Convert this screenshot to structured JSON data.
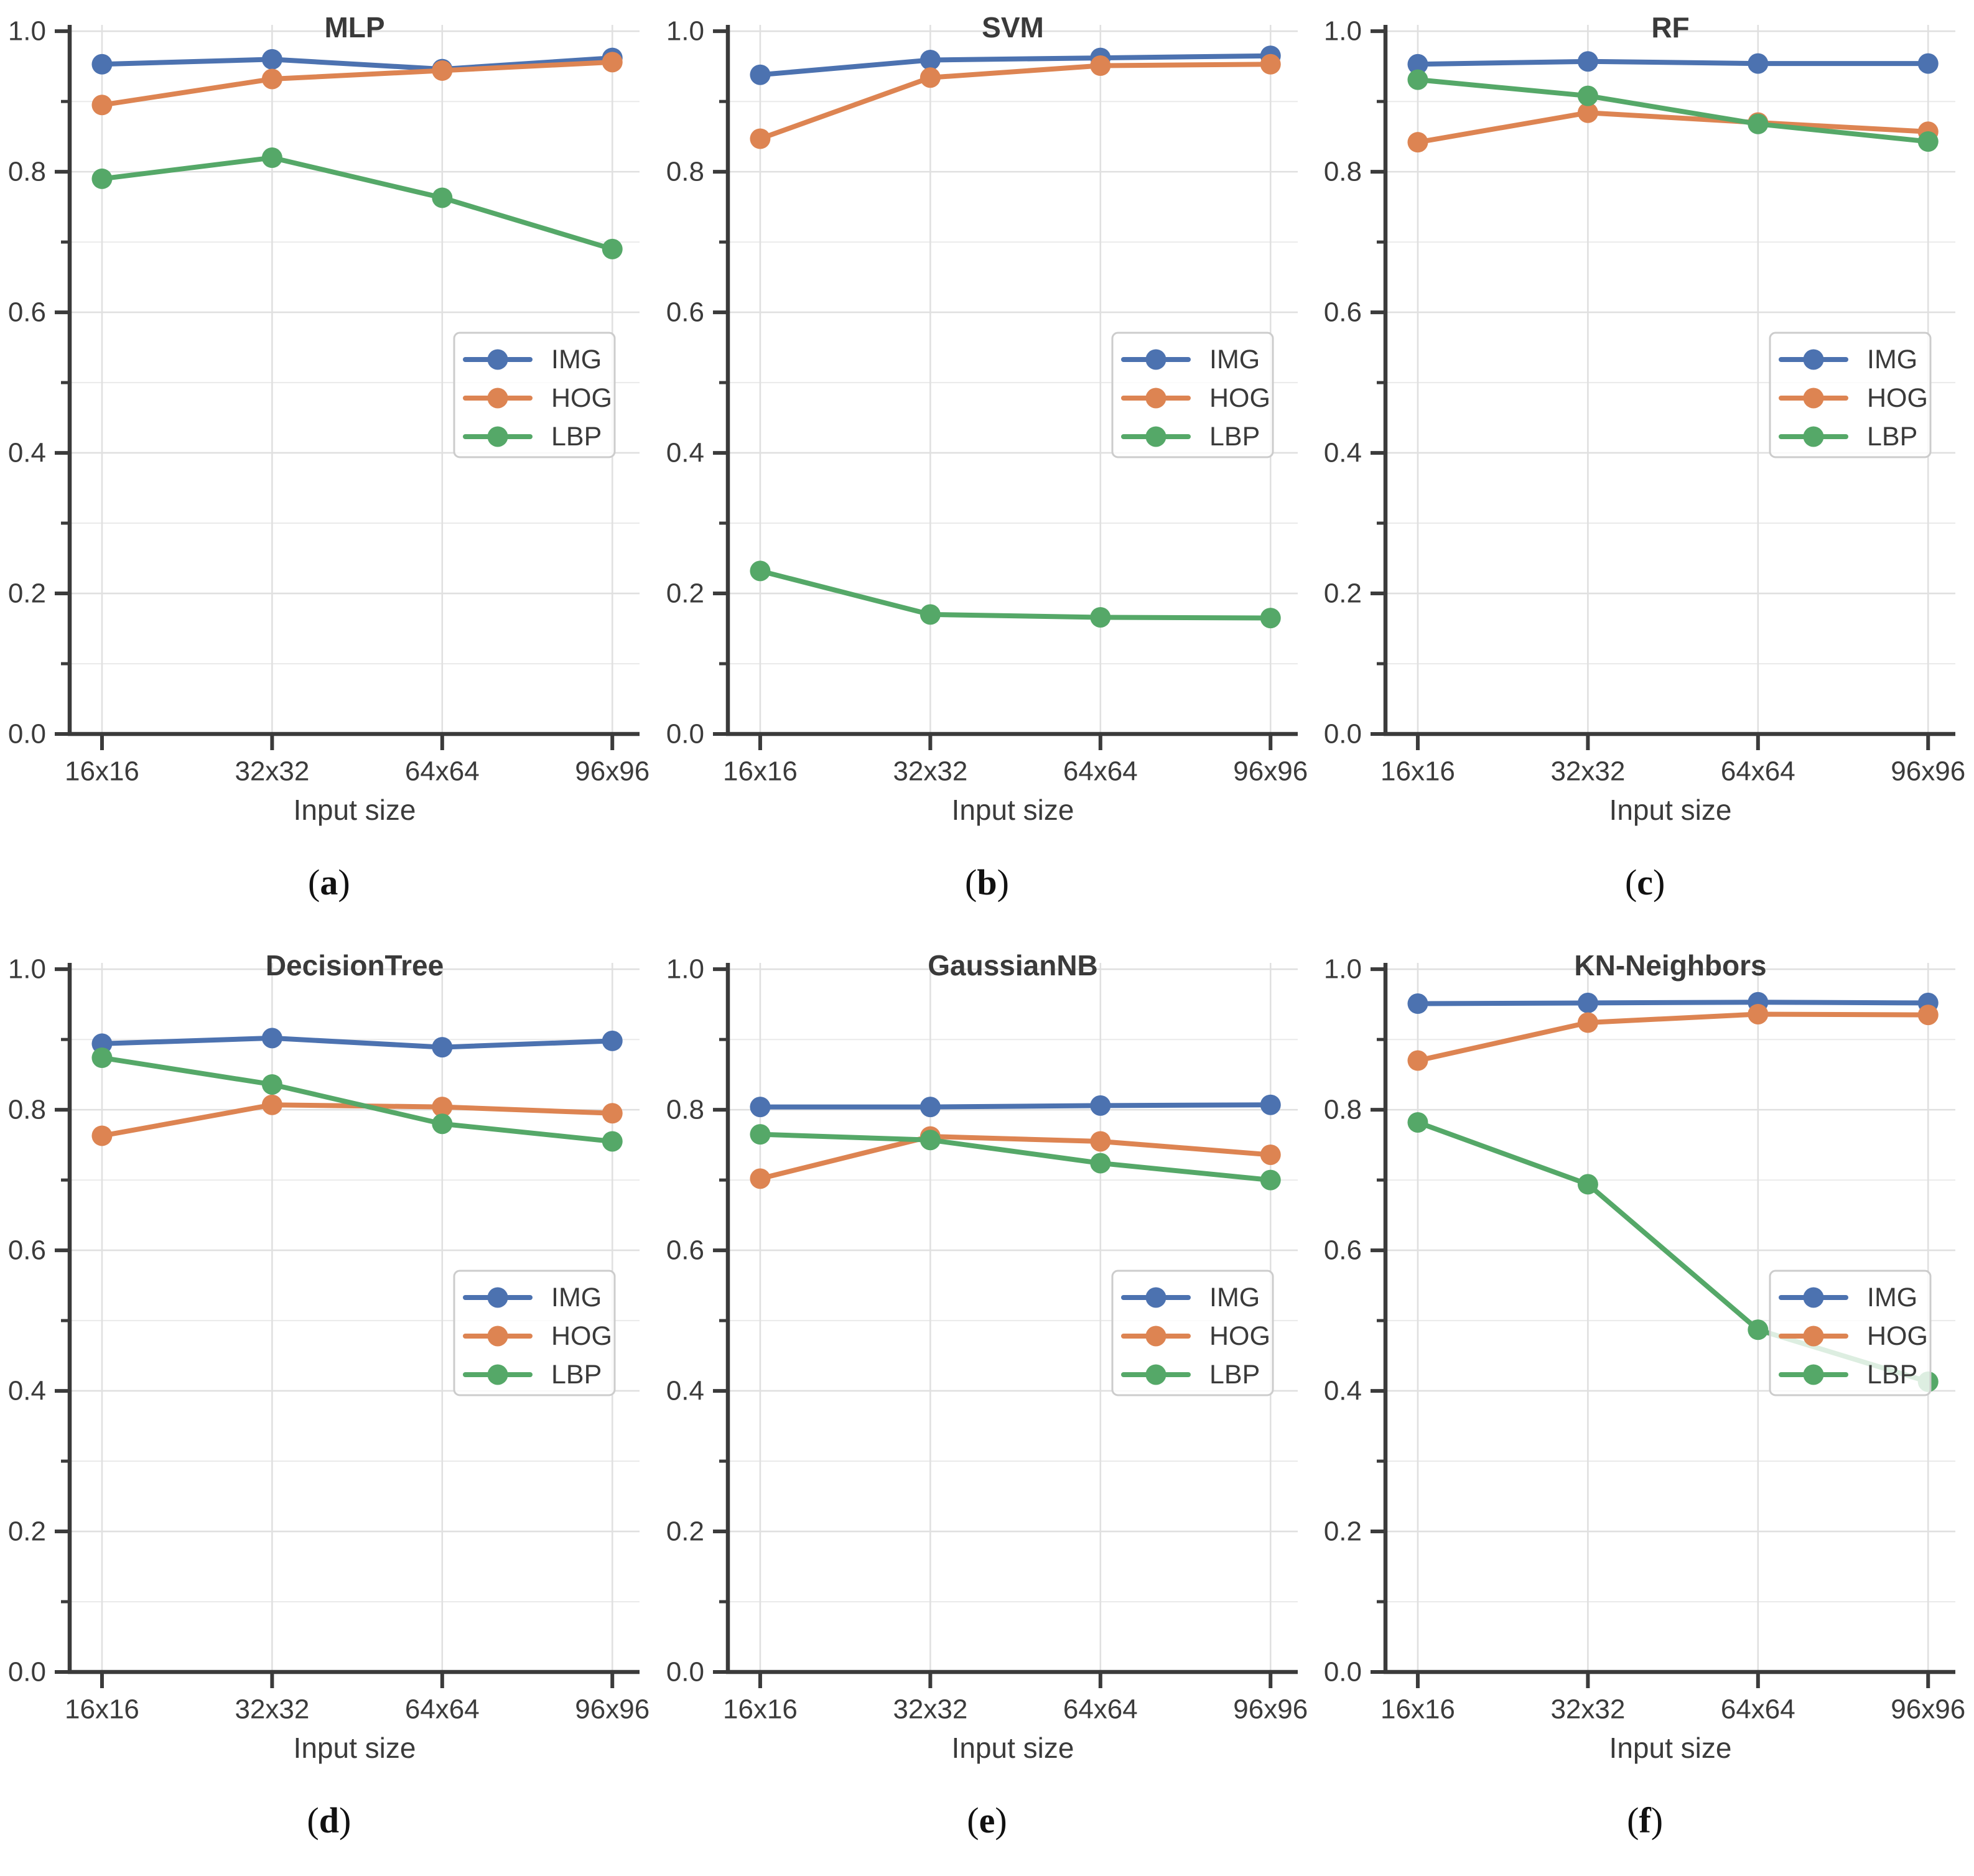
{
  "figure": {
    "background": "#ffffff",
    "x_axis_label": "Input size",
    "caption_prefix": "(",
    "caption_suffix": ")",
    "colors": {
      "img_series": "#4C72B0",
      "hog_series": "#DD8452",
      "lbp_series": "#55A868",
      "spine": "#3b3b3b",
      "tick_text": "#3b3b3b",
      "grid_major": "#e0e0e0",
      "grid_minor": "#ebebeb",
      "legend_border": "#cccccc"
    }
  },
  "chart_data": [
    {
      "type": "line",
      "title": "MLP",
      "caption_letter": "a",
      "xlabel": "Input size",
      "categories": [
        "16x16",
        "32x32",
        "64x64",
        "96x96"
      ],
      "ylim": [
        0.0,
        1.0
      ],
      "yticks": [
        "0.0",
        "0.2",
        "0.4",
        "0.6",
        "0.8",
        "1.0"
      ],
      "grid": true,
      "legend_position": "center right",
      "legend_entries": [
        "IMG",
        "HOG",
        "LBP"
      ],
      "series": [
        {
          "name": "IMG",
          "color": "#4C72B0",
          "values": [
            0.953,
            0.96,
            0.946,
            0.962
          ]
        },
        {
          "name": "HOG",
          "color": "#DD8452",
          "values": [
            0.895,
            0.932,
            0.944,
            0.956
          ]
        },
        {
          "name": "LBP",
          "color": "#55A868",
          "values": [
            0.79,
            0.82,
            0.763,
            0.69
          ]
        }
      ]
    },
    {
      "type": "line",
      "title": "SVM",
      "caption_letter": "b",
      "xlabel": "Input size",
      "categories": [
        "16x16",
        "32x32",
        "64x64",
        "96x96"
      ],
      "ylim": [
        0.0,
        1.0
      ],
      "yticks": [
        "0.0",
        "0.2",
        "0.4",
        "0.6",
        "0.8",
        "1.0"
      ],
      "grid": true,
      "legend_position": "center right",
      "legend_entries": [
        "IMG",
        "HOG",
        "LBP"
      ],
      "series": [
        {
          "name": "IMG",
          "color": "#4C72B0",
          "values": [
            0.938,
            0.959,
            0.962,
            0.965
          ]
        },
        {
          "name": "HOG",
          "color": "#DD8452",
          "values": [
            0.847,
            0.934,
            0.951,
            0.953
          ]
        },
        {
          "name": "LBP",
          "color": "#55A868",
          "values": [
            0.232,
            0.17,
            0.166,
            0.165
          ]
        }
      ]
    },
    {
      "type": "line",
      "title": "RF",
      "caption_letter": "c",
      "xlabel": "Input size",
      "categories": [
        "16x16",
        "32x32",
        "64x64",
        "96x96"
      ],
      "ylim": [
        0.0,
        1.0
      ],
      "yticks": [
        "0.0",
        "0.2",
        "0.4",
        "0.6",
        "0.8",
        "1.0"
      ],
      "grid": true,
      "legend_position": "center right",
      "legend_entries": [
        "IMG",
        "HOG",
        "LBP"
      ],
      "series": [
        {
          "name": "IMG",
          "color": "#4C72B0",
          "values": [
            0.953,
            0.957,
            0.954,
            0.954
          ]
        },
        {
          "name": "HOG",
          "color": "#DD8452",
          "values": [
            0.842,
            0.884,
            0.87,
            0.857
          ]
        },
        {
          "name": "LBP",
          "color": "#55A868",
          "values": [
            0.931,
            0.908,
            0.868,
            0.843
          ]
        }
      ]
    },
    {
      "type": "line",
      "title": "DecisionTree",
      "caption_letter": "d",
      "xlabel": "Input size",
      "categories": [
        "16x16",
        "32x32",
        "64x64",
        "96x96"
      ],
      "ylim": [
        0.0,
        1.0
      ],
      "yticks": [
        "0.0",
        "0.2",
        "0.4",
        "0.6",
        "0.8",
        "1.0"
      ],
      "grid": true,
      "legend_position": "center right",
      "legend_entries": [
        "IMG",
        "HOG",
        "LBP"
      ],
      "series": [
        {
          "name": "IMG",
          "color": "#4C72B0",
          "values": [
            0.894,
            0.902,
            0.889,
            0.898
          ]
        },
        {
          "name": "HOG",
          "color": "#DD8452",
          "values": [
            0.763,
            0.807,
            0.804,
            0.795
          ]
        },
        {
          "name": "LBP",
          "color": "#55A868",
          "values": [
            0.874,
            0.836,
            0.78,
            0.755
          ]
        }
      ]
    },
    {
      "type": "line",
      "title": "GaussianNB",
      "caption_letter": "e",
      "xlabel": "Input size",
      "categories": [
        "16x16",
        "32x32",
        "64x64",
        "96x96"
      ],
      "ylim": [
        0.0,
        1.0
      ],
      "yticks": [
        "0.0",
        "0.2",
        "0.4",
        "0.6",
        "0.8",
        "1.0"
      ],
      "grid": true,
      "legend_position": "center right",
      "legend_entries": [
        "IMG",
        "HOG",
        "LBP"
      ],
      "series": [
        {
          "name": "IMG",
          "color": "#4C72B0",
          "values": [
            0.804,
            0.804,
            0.806,
            0.807
          ]
        },
        {
          "name": "HOG",
          "color": "#DD8452",
          "values": [
            0.702,
            0.762,
            0.755,
            0.736
          ]
        },
        {
          "name": "LBP",
          "color": "#55A868",
          "values": [
            0.765,
            0.757,
            0.724,
            0.7
          ]
        }
      ]
    },
    {
      "type": "line",
      "title": "KN-Neighbors",
      "caption_letter": "f",
      "xlabel": "Input size",
      "categories": [
        "16x16",
        "32x32",
        "64x64",
        "96x96"
      ],
      "ylim": [
        0.0,
        1.0
      ],
      "yticks": [
        "0.0",
        "0.2",
        "0.4",
        "0.6",
        "0.8",
        "1.0"
      ],
      "grid": true,
      "legend_position": "center right",
      "legend_entries": [
        "IMG",
        "HOG",
        "LBP"
      ],
      "series": [
        {
          "name": "IMG",
          "color": "#4C72B0",
          "values": [
            0.951,
            0.952,
            0.953,
            0.952
          ]
        },
        {
          "name": "HOG",
          "color": "#DD8452",
          "values": [
            0.87,
            0.924,
            0.936,
            0.935
          ]
        },
        {
          "name": "LBP",
          "color": "#55A868",
          "values": [
            0.782,
            0.694,
            0.487,
            0.413
          ]
        }
      ]
    }
  ]
}
